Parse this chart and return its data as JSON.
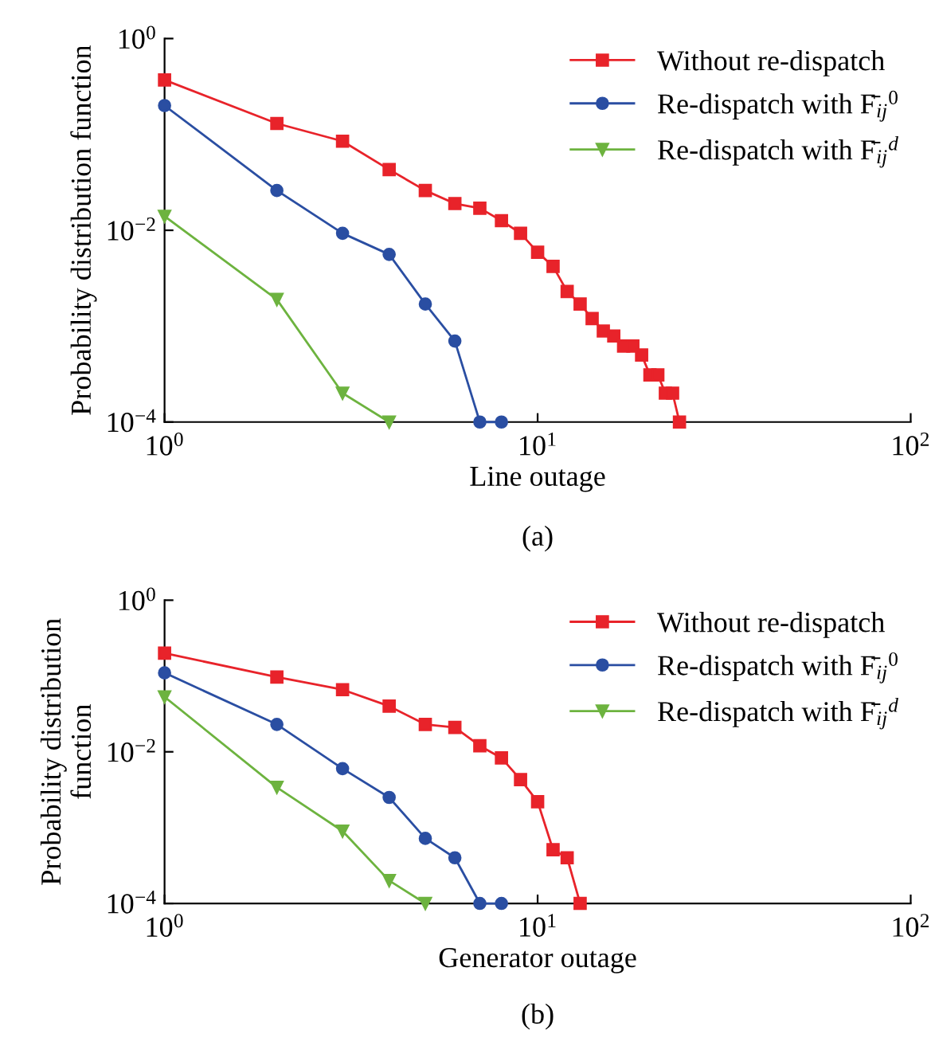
{
  "chart_data": [
    {
      "type": "line",
      "xlabel": "Line outage",
      "ylabel": "Probability distribution function",
      "annotations": [
        "(a)"
      ],
      "log": "xy",
      "grid": false,
      "legend": "top right",
      "xlim": [
        1,
        100
      ],
      "xticks": [
        {
          "value": 1,
          "label": "10$^{0}$"
        },
        {
          "value": 10,
          "label": "10$^{1}$"
        },
        {
          "value": 100,
          "label": "10$^{2}$"
        }
      ],
      "ylim": [
        0.0001,
        1
      ],
      "yticks": [
        {
          "value": 0.0001,
          "label": "10$^{−4}$"
        },
        {
          "value": 0.01,
          "label": "10$^{−2}$"
        },
        {
          "value": 1,
          "label": "10$^{0}$"
        }
      ],
      "series": [
        {
          "name": "Without re-dispatch",
          "color": "#e8232a",
          "marker": "square",
          "x": [
            1,
            2,
            3,
            4,
            5,
            6,
            7,
            8,
            9,
            10,
            11,
            12,
            13,
            14,
            15,
            16,
            17,
            18,
            19,
            20,
            21,
            22,
            23,
            24
          ],
          "values": [
            0.37,
            0.13,
            0.085,
            0.043,
            0.026,
            0.019,
            0.017,
            0.0126,
            0.0093,
            0.0059,
            0.0042,
            0.0023,
            0.0017,
            0.0012,
            0.00089,
            0.00079,
            0.00062,
            0.00062,
            0.0005,
            0.00031,
            0.00031,
            0.0002,
            0.0002,
            0.0001
          ]
        },
        {
          "name": "Re-dispatch with F̄$_{ij}$$^{0}$",
          "color": "#2a4ea2",
          "marker": "circle",
          "x": [
            1,
            2,
            3,
            4,
            5,
            6,
            7,
            8
          ],
          "values": [
            0.2,
            0.026,
            0.0093,
            0.0056,
            0.0017,
            0.0007,
            0.0001,
            0.0001
          ]
        },
        {
          "name": "Re-dispatch with F̄$_{ij}$$^{d}$",
          "color": "#6db33f",
          "marker": "triangle",
          "x": [
            1,
            2,
            3,
            4
          ],
          "values": [
            0.014,
            0.0019,
            0.0002,
            0.0001
          ]
        }
      ]
    },
    {
      "type": "line",
      "xlabel": "Generator outage",
      "ylabel": "Probability distribution\nfunction",
      "annotations": [
        "(b)"
      ],
      "log": "xy",
      "grid": false,
      "legend": "top right",
      "xlim": [
        1,
        100
      ],
      "xticks": [
        {
          "value": 1,
          "label": "10$^{0}$"
        },
        {
          "value": 10,
          "label": "10$^{1}$"
        },
        {
          "value": 100,
          "label": "10$^{2}$"
        }
      ],
      "ylim": [
        0.0001,
        1
      ],
      "yticks": [
        {
          "value": 0.0001,
          "label": "10$^{−4}$"
        },
        {
          "value": 0.01,
          "label": "10$^{−2}$"
        },
        {
          "value": 1,
          "label": "10$^{0}$"
        }
      ],
      "series": [
        {
          "name": "Without re-dispatch",
          "color": "#e8232a",
          "marker": "square",
          "x": [
            1,
            2,
            3,
            4,
            5,
            6,
            7,
            8,
            9,
            10,
            11,
            12,
            13
          ],
          "values": [
            0.2,
            0.097,
            0.066,
            0.04,
            0.023,
            0.021,
            0.012,
            0.0083,
            0.0043,
            0.0022,
            0.00051,
            0.0004,
            0.0001
          ]
        },
        {
          "name": "Re-dispatch with F̄$_{ij}$$^{0}$",
          "color": "#2a4ea2",
          "marker": "circle",
          "x": [
            1,
            2,
            3,
            4,
            5,
            6,
            7,
            8
          ],
          "values": [
            0.11,
            0.023,
            0.006,
            0.0025,
            0.00072,
            0.0004,
            0.0001,
            0.0001
          ]
        },
        {
          "name": "Re-dispatch with F̄$_{ij}$$^{d}$",
          "color": "#6db33f",
          "marker": "triangle",
          "x": [
            1,
            2,
            3,
            4,
            5
          ],
          "values": [
            0.053,
            0.0034,
            0.0009,
            0.0002,
            0.0001
          ]
        }
      ]
    }
  ]
}
